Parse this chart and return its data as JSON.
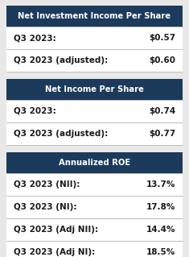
{
  "sections": [
    {
      "header": "Net Investment Income Per Share",
      "rows": [
        {
          "label": "Q3 2023:",
          "value": "$0.57"
        },
        {
          "label": "Q3 2023 (adjusted):",
          "value": "$0.60"
        }
      ]
    },
    {
      "header": "Net Income Per Share",
      "rows": [
        {
          "label": "Q3 2023:",
          "value": "$0.74"
        },
        {
          "label": "Q3 2023 (adjusted):",
          "value": "$0.77"
        }
      ]
    },
    {
      "header": "Annualized ROE",
      "rows": [
        {
          "label": "Q3 2023 (NII):",
          "value": "13.7%"
        },
        {
          "label": "Q3 2023 (NI):",
          "value": "17.8%"
        },
        {
          "label": "Q3 2023 (Adj NII):",
          "value": "14.4%"
        },
        {
          "label": "Q3 2023 (Adj NI):",
          "value": "18.5%"
        }
      ]
    }
  ],
  "header_bg_color": "#1b3a5c",
  "header_text_color": "#ffffff",
  "row_bg_color": "#ffffff",
  "row_text_color": "#1a1a1a",
  "divider_color": "#bbbbbb",
  "outer_bg_color": "#e8e8e8",
  "header_fontsize": 7.2,
  "row_fontsize": 7.5,
  "fig_width": 2.35,
  "fig_height": 3.19,
  "dpi": 100
}
